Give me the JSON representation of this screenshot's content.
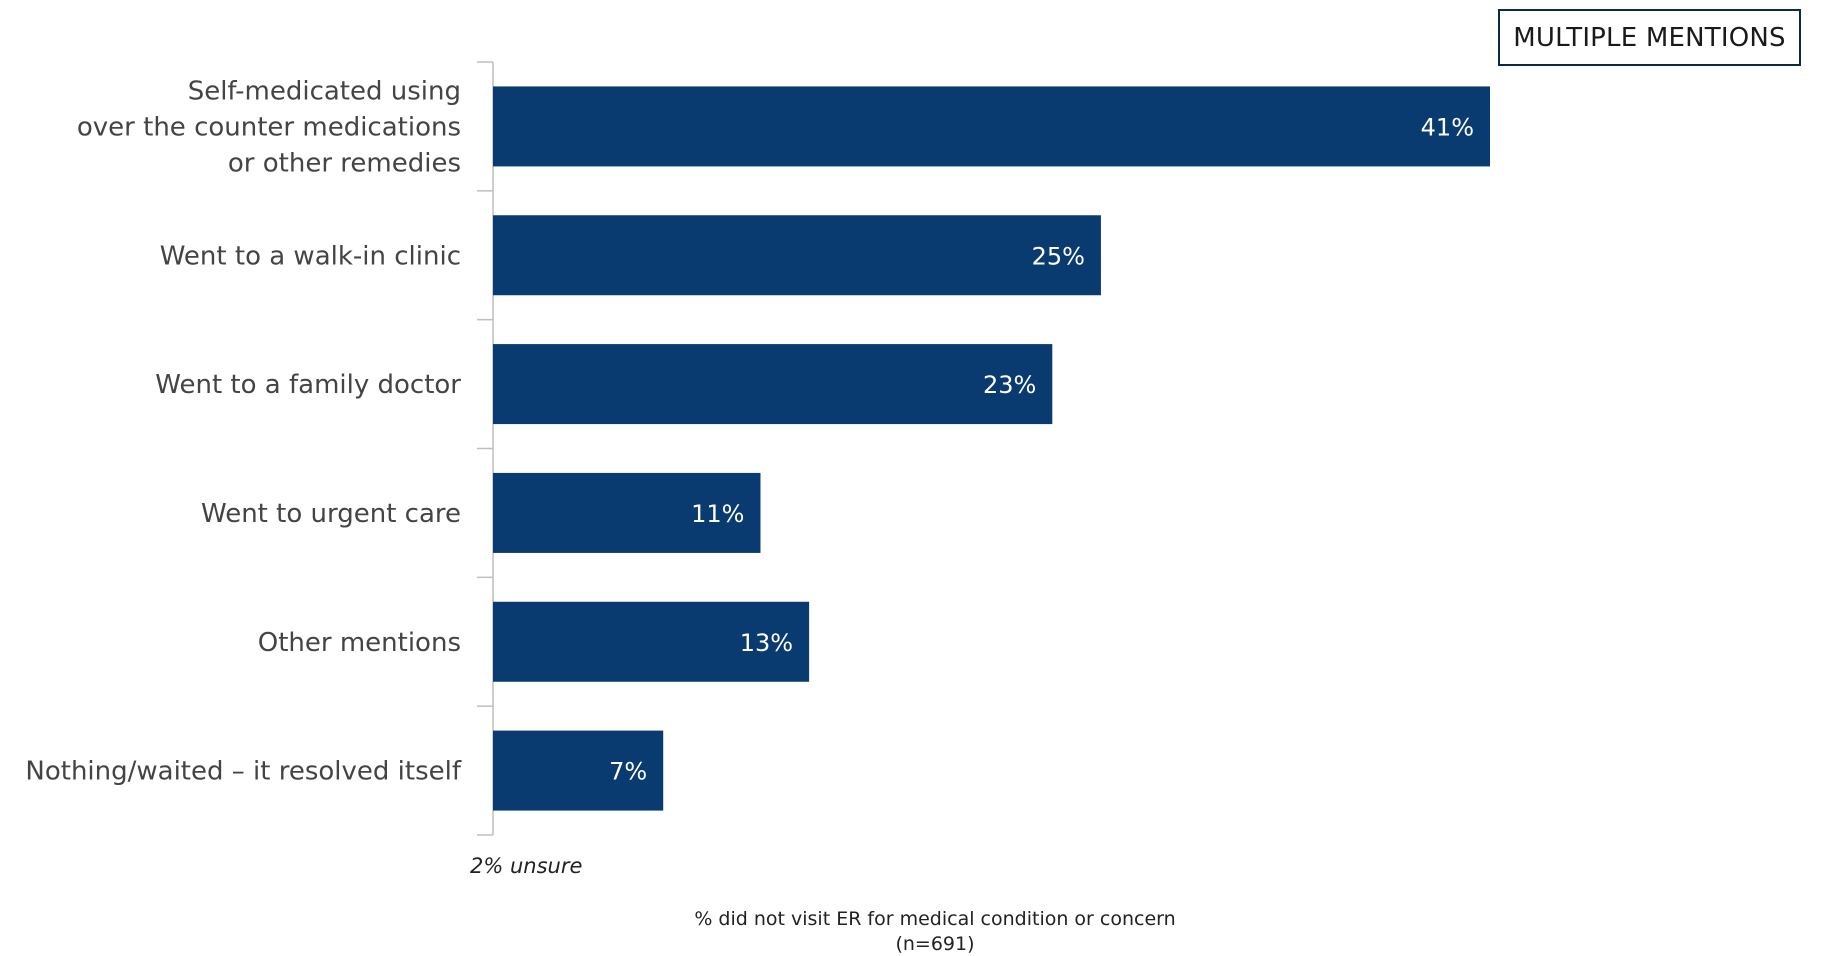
{
  "badge": "MULTIPLE MENTIONS",
  "note": "2% unsure",
  "footer": {
    "line1": "% did not visit ER for medical condition or concern",
    "line2": "(n=691)"
  },
  "colors": {
    "bar": "#0a3b70",
    "axis": "#bfbfbf",
    "label": "#444444",
    "value_label": "#ffffff"
  },
  "chart_data": {
    "type": "bar",
    "orientation": "horizontal",
    "categories": [
      [
        "Self-medicated using",
        "over the counter medications",
        "or other remedies"
      ],
      [
        "Went to a walk-in clinic"
      ],
      [
        "Went to a family doctor"
      ],
      [
        "Went to urgent care"
      ],
      [
        "Other mentions"
      ],
      [
        "Nothing/waited – it resolved itself"
      ]
    ],
    "values": [
      41,
      25,
      23,
      11,
      13,
      7
    ],
    "value_labels": [
      "41%",
      "25%",
      "23%",
      "11%",
      "13%",
      "7%"
    ],
    "xlim": [
      0,
      60
    ],
    "grid": false
  }
}
